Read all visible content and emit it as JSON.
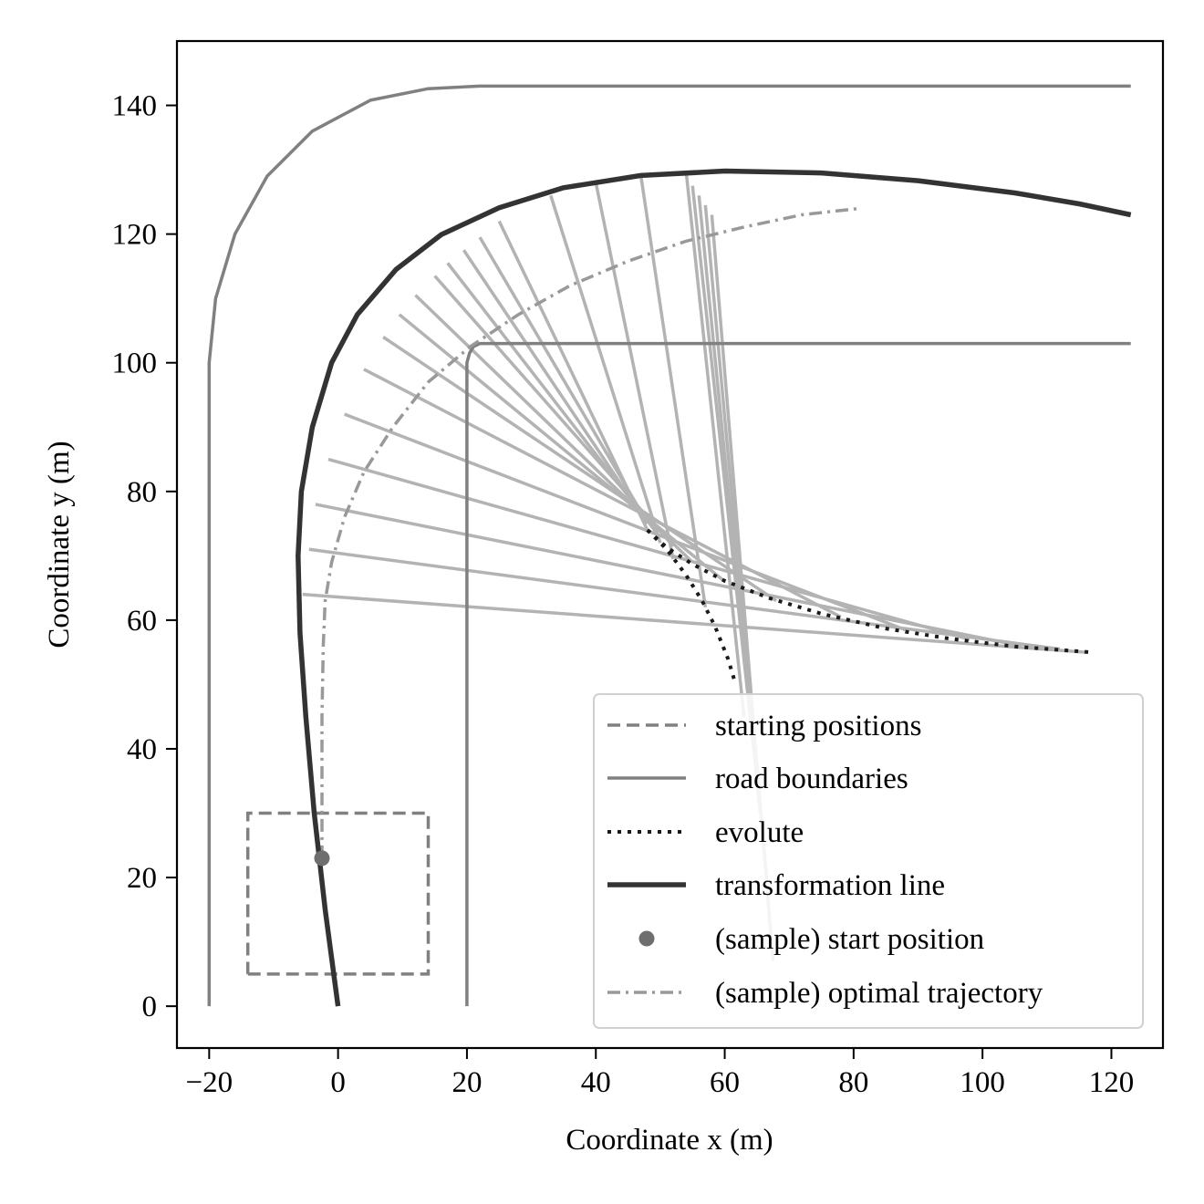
{
  "chart_data": {
    "type": "line",
    "title": "",
    "xlabel": "Coordinate x (m)",
    "ylabel": "Coordinate y (m)",
    "xlim": [
      -25,
      128
    ],
    "ylim": [
      -6.5,
      150
    ],
    "xticks": [
      -20,
      0,
      20,
      40,
      60,
      80,
      100,
      120
    ],
    "xtick_labels": [
      "−20",
      "0",
      "20",
      "40",
      "60",
      "80",
      "100",
      "120"
    ],
    "yticks": [
      0,
      20,
      40,
      60,
      80,
      100,
      120,
      140
    ],
    "ytick_labels": [
      "0",
      "20",
      "40",
      "60",
      "80",
      "100",
      "120",
      "140"
    ],
    "grid": false,
    "legend_position": "lower-right",
    "colors": {
      "road": "#808080",
      "start_box": "#808080",
      "evolute": "#1a1a1a",
      "transformation": "#333333",
      "normals": "#b3b3b3",
      "trajectory": "#999999",
      "start_point": "#6e6e6e"
    },
    "series": [
      {
        "name": "starting positions",
        "style": "dashed",
        "x": [
          -14,
          14,
          14,
          -14,
          -14
        ],
        "y": [
          5,
          5,
          30,
          30,
          5
        ]
      },
      {
        "name": "road boundaries",
        "style": "solid",
        "segments": [
          {
            "x": [
              -20,
              -20,
              -19,
              -16,
              -11,
              -4,
              5,
              14,
              22,
              123
            ],
            "y": [
              0,
              100,
              110,
              120,
              129,
              136,
              140.8,
              142.6,
              143,
              143
            ]
          },
          {
            "x": [
              20,
              20,
              20.4,
              21,
              22,
              123
            ],
            "y": [
              0,
              100,
              101.5,
              102.5,
              103,
              103
            ]
          }
        ]
      },
      {
        "name": "evolute",
        "style": "dotted",
        "segments": [
          {
            "x": [
              48,
              51,
              55,
              60,
              67,
              75,
              85,
              95,
              105,
              117
            ],
            "y": [
              74,
              71.3,
              68.7,
              66.1,
              63.4,
              61,
              58.7,
              57.1,
              55.9,
              55
            ]
          },
          {
            "x": [
              48,
              51,
              54,
              56.5,
              58.5,
              60.5,
              61.7
            ],
            "y": [
              74,
              71,
              67,
              63,
              59,
              54,
              50
            ]
          }
        ]
      },
      {
        "name": "transformation line",
        "style": "solid-thick",
        "x": [
          0,
          -2,
          -3.7,
          -5,
          -5.9,
          -6.2,
          -5.7,
          -4,
          -1,
          3,
          9,
          16,
          25,
          35,
          47,
          60,
          75,
          90,
          105,
          115,
          123
        ],
        "y": [
          0,
          15,
          30,
          45,
          58,
          70,
          80,
          90,
          100,
          107.5,
          114.5,
          119.9,
          124.1,
          127.2,
          129.1,
          129.8,
          129.5,
          128.3,
          126.4,
          124.7,
          123
        ]
      },
      {
        "name": "(sample) start position",
        "style": "marker",
        "x": [
          -2.5
        ],
        "y": [
          23
        ]
      },
      {
        "name": "(sample) optimal trajectory",
        "style": "dashdot",
        "x": [
          -2.5,
          -2.5,
          -2.3,
          -2,
          -1,
          1,
          4,
          8.5,
          14,
          20.5,
          28,
          36,
          45,
          54,
          63,
          72,
          81
        ],
        "y": [
          23,
          45,
          56,
          63,
          69,
          76,
          83,
          90,
          97,
          102.5,
          107.5,
          112,
          115.8,
          118.9,
          121.1,
          123,
          124
        ]
      }
    ],
    "normal_lines": [
      {
        "x": [
          -5.5,
          116
        ],
        "y": [
          64,
          55
        ]
      },
      {
        "x": [
          -4.5,
          112
        ],
        "y": [
          71,
          55.5
        ]
      },
      {
        "x": [
          -3.5,
          106
        ],
        "y": [
          78,
          56
        ]
      },
      {
        "x": [
          -1.5,
          98
        ],
        "y": [
          85,
          57
        ]
      },
      {
        "x": [
          1,
          88
        ],
        "y": [
          92,
          58.5
        ]
      },
      {
        "x": [
          4,
          78
        ],
        "y": [
          99,
          60.5
        ]
      },
      {
        "x": [
          7,
          68
        ],
        "y": [
          104,
          63
        ]
      },
      {
        "x": [
          9.5,
          60
        ],
        "y": [
          107.5,
          66
        ]
      },
      {
        "x": [
          12,
          55
        ],
        "y": [
          110.5,
          69
        ]
      },
      {
        "x": [
          15,
          52
        ],
        "y": [
          113.5,
          71.5
        ]
      },
      {
        "x": [
          17,
          49.5
        ],
        "y": [
          115.5,
          73.5
        ]
      },
      {
        "x": [
          19.5,
          48
        ],
        "y": [
          117.5,
          75
        ]
      },
      {
        "x": [
          22,
          47.5
        ],
        "y": [
          119.5,
          76
        ]
      },
      {
        "x": [
          25,
          48
        ],
        "y": [
          122,
          74
        ]
      },
      {
        "x": [
          33,
          50
        ],
        "y": [
          126,
          72
        ]
      },
      {
        "x": [
          40,
          52
        ],
        "y": [
          128,
          69.5
        ]
      },
      {
        "x": [
          47,
          57
        ],
        "y": [
          129,
          62
        ]
      },
      {
        "x": [
          54,
          63
        ],
        "y": [
          129.8,
          45
        ]
      },
      {
        "x": [
          55,
          64.5
        ],
        "y": [
          127.5,
          40
        ]
      },
      {
        "x": [
          56,
          65.5
        ],
        "y": [
          126,
          30
        ]
      },
      {
        "x": [
          57,
          66.5
        ],
        "y": [
          124.5,
          20
        ]
      },
      {
        "x": [
          58,
          67.5
        ],
        "y": [
          123,
          7
        ]
      }
    ]
  }
}
